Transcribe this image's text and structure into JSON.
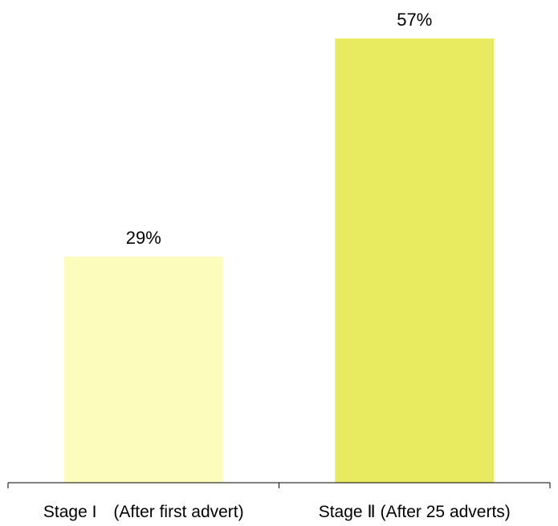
{
  "chart_data": {
    "type": "bar",
    "title": "",
    "xlabel": "",
    "ylabel": "",
    "categories": [
      "Stage I　(After first advert)",
      "Stage Ⅱ  (After 25 adverts)"
    ],
    "values": [
      29,
      57
    ],
    "data_labels": [
      "29%",
      "57%"
    ],
    "ylim": [
      0,
      60
    ],
    "grid": false,
    "colors": [
      "#FCFDBD",
      "#E8EA60"
    ]
  }
}
